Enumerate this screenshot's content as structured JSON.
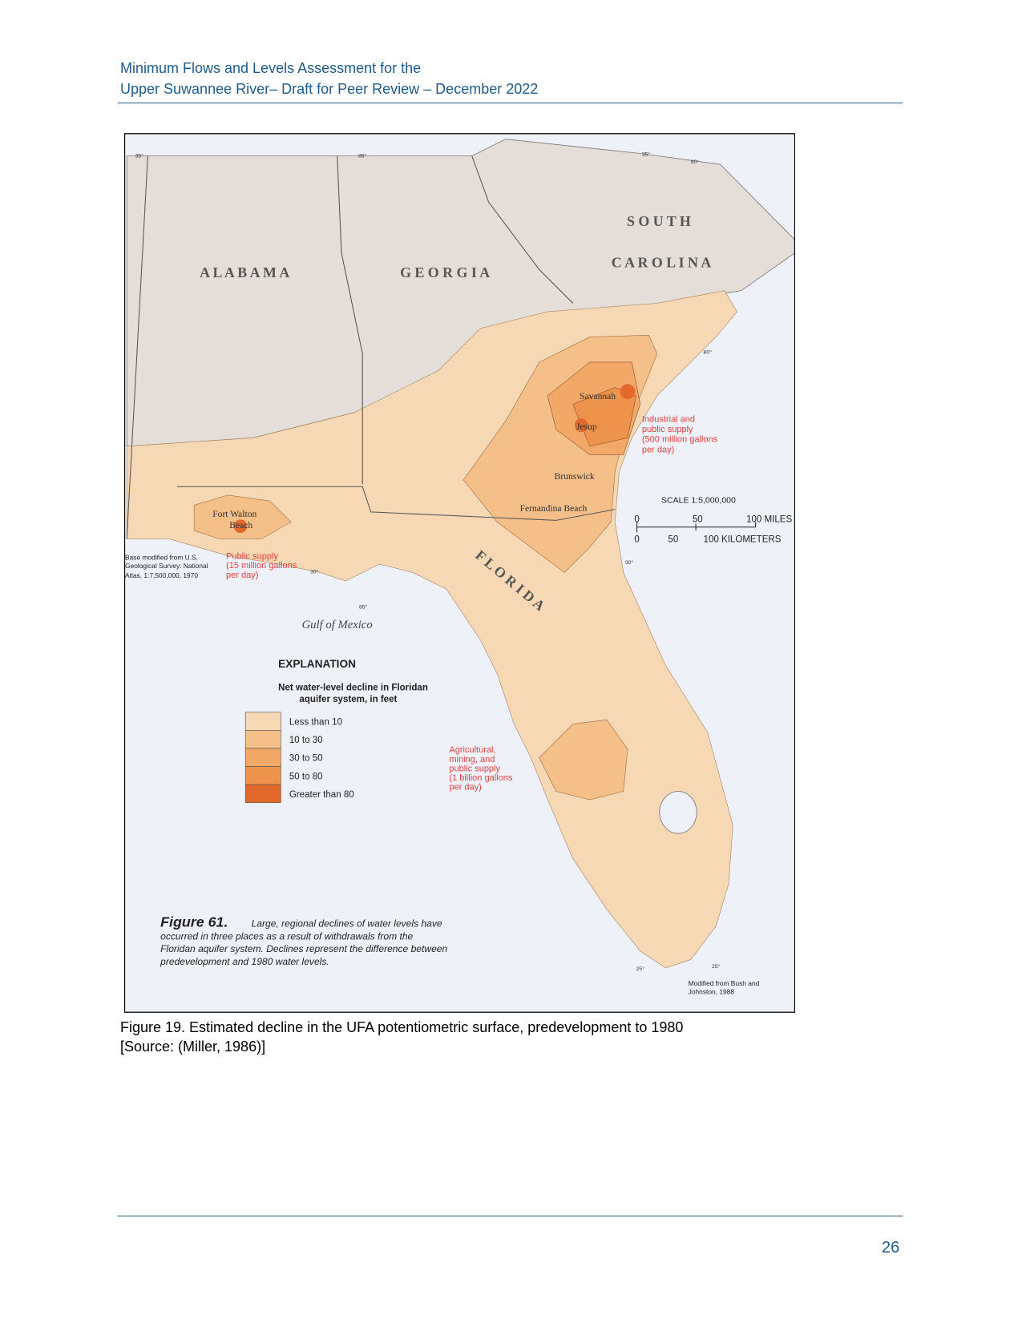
{
  "header": {
    "lines": [
      "Minimum Flows and Levels Assessment for the",
      "Upper Suwannee River– Draft for Peer Review – December 2022"
    ]
  },
  "figure": {
    "map": {
      "states": {
        "south": "S O U T H",
        "carolina": "C A R O L I N A",
        "alabama": "A L A B A M A",
        "georgia": "G E O R G I A",
        "florida": "F L O R I D A"
      },
      "cities": {
        "savannah": "Savannah",
        "jesup": "Jesup",
        "brunswick": "Brunswick",
        "fernandina": "Fernandina Beach",
        "fort_walton": [
          "Fort Walton",
          "Beach"
        ]
      },
      "annotations": {
        "industrial": [
          "Industrial and",
          "public supply",
          "(500 million gallons",
          "per day)"
        ],
        "public": [
          "Public supply",
          "(15 million gallons",
          "per day)"
        ],
        "agricultural": [
          "Agricultural,",
          "mining, and",
          "public supply",
          "(1 billion gallons",
          "per day)"
        ]
      },
      "gulf": "Gulf of Mexico",
      "base_note": [
        "Base modified from U.S.",
        "Geological Survey: National",
        "Atlas, 1:7,500,000, 1970"
      ],
      "scale": {
        "title": "SCALE 1:5,000,000",
        "miles": [
          "0",
          "50",
          "100 MILES"
        ],
        "kilometers": [
          "0",
          "50",
          "100 KILOMETERS"
        ]
      },
      "degrees": [
        "35°",
        "85°",
        "35°",
        "80°",
        "80°",
        "30°",
        "30°",
        "85°",
        "25°",
        "25°"
      ],
      "legend": {
        "title": "EXPLANATION",
        "subtitle": [
          "Net water-level decline in Floridan",
          "aquifer system, in feet"
        ],
        "items": [
          {
            "label": "Less than 10",
            "color": "#f6d8b4"
          },
          {
            "label": "10 to 30",
            "color": "#f4bf88"
          },
          {
            "label": "30 to 50",
            "color": "#f2a968"
          },
          {
            "label": "50 to 80",
            "color": "#ee934c"
          },
          {
            "label": "Greater than 80",
            "color": "#e3682c"
          }
        ]
      },
      "figure_label": "Figure 61.",
      "figure_text": [
        "Large, regional declines of water levels have",
        "occurred in three places as a result of withdrawals from the",
        "Floridan aquifer system. Declines represent the difference between",
        "predevelopment and 1980 water levels."
      ],
      "credit": [
        "Modified from Bush and",
        "Johnston, 1988"
      ]
    },
    "caption": [
      "Figure 19. Estimated decline in the UFA potentiometric surface, predevelopment to 1980",
      "[Source: (Miller, 1986)]"
    ]
  },
  "page_number": "26"
}
